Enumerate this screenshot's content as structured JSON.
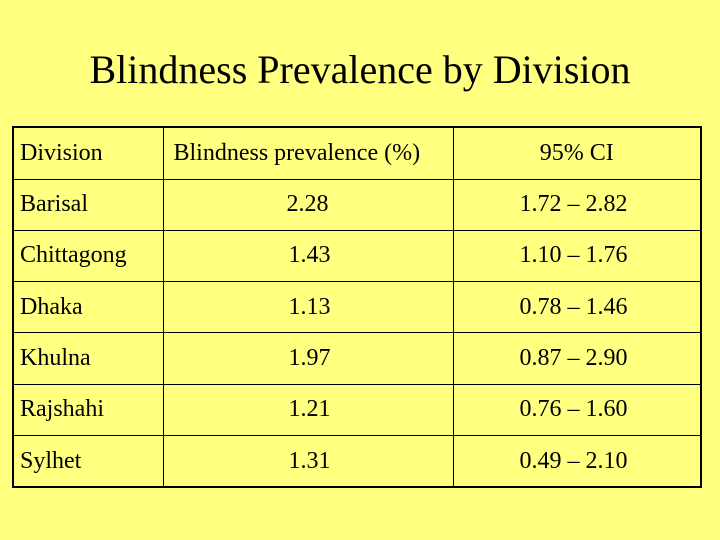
{
  "title": "Blindness Prevalence by Division",
  "table": {
    "headers": {
      "division": "Division",
      "prevalence": "Blindness prevalence (%)",
      "ci": "95% CI"
    },
    "rows": [
      {
        "division": "Barisal",
        "prevalence": "2.28",
        "ci": "1.72 – 2.82"
      },
      {
        "division": "Chittagong",
        "prevalence": "1.43",
        "ci": "1.10 – 1.76"
      },
      {
        "division": "Dhaka",
        "prevalence": "1.13",
        "ci": "0.78 – 1.46"
      },
      {
        "division": "Khulna",
        "prevalence": "1.97",
        "ci": "0.87 – 2.90"
      },
      {
        "division": "Rajshahi",
        "prevalence": "1.21",
        "ci": "0.76 – 1.60"
      },
      {
        "division": "Sylhet",
        "prevalence": "1.31",
        "ci": "0.49 – 2.10"
      }
    ]
  },
  "colors": {
    "background": "#ffff80",
    "text": "#000000",
    "border": "#000000"
  }
}
